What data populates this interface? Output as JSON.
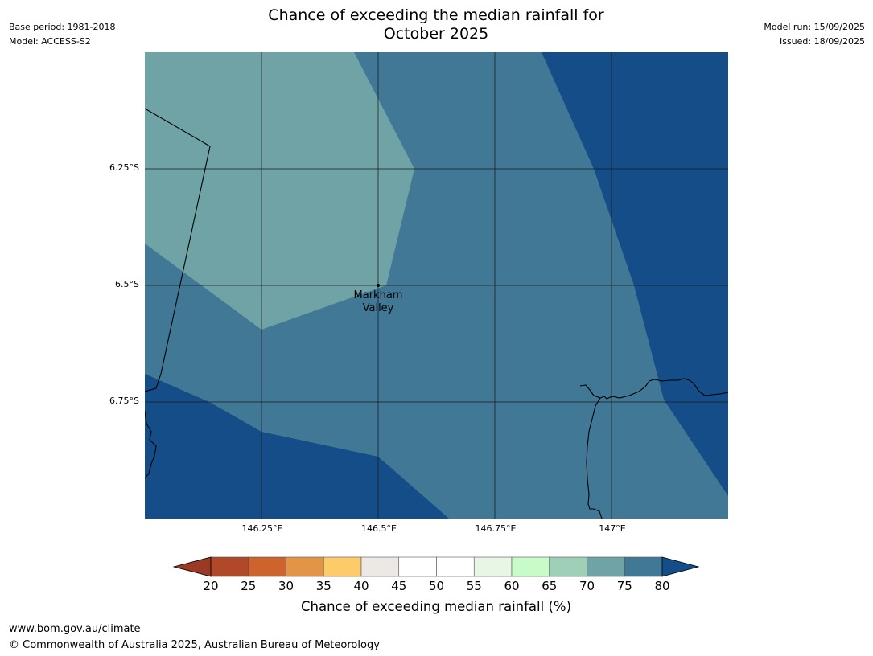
{
  "header": {
    "title_line1": "Chance of exceeding the median rainfall for",
    "title_line2": "October 2025",
    "base_period": "Base period: 1981-2018",
    "model": "Model: ACCESS-S2",
    "model_run": "Model run: 15/09/2025",
    "issued": "Issued: 18/09/2025"
  },
  "map": {
    "place": {
      "name_line1": "Markham",
      "name_line2": "Valley",
      "lon": 146.5,
      "lat": -6.5
    },
    "lat_labels": [
      "6.25°S",
      "6.5°S",
      "6.75°S"
    ],
    "lon_labels": [
      "146.25°E",
      "146.5°E",
      "146.75°E",
      "147°E"
    ],
    "extent": {
      "lon_min": 146.0,
      "lon_max": 147.25,
      "lat_min": -7.0,
      "lat_max": -6.0
    },
    "zones": [
      {
        "category": "80+",
        "color": "#144d87"
      },
      {
        "category": "75-80",
        "color": "#417896"
      },
      {
        "category": "70-75",
        "color": "#6fa3a6"
      }
    ],
    "colors": {
      "gridline": "#1a1a1a",
      "coastline": "#000000"
    }
  },
  "colorbar": {
    "label": "Chance of exceeding median rainfall (%)",
    "ticks": [
      "20",
      "25",
      "30",
      "35",
      "40",
      "45",
      "50",
      "55",
      "60",
      "65",
      "70",
      "75",
      "80"
    ],
    "colors": [
      "#b0482a",
      "#cd632d",
      "#e29546",
      "#fdcb6a",
      "#ece8e3",
      "#ffffff",
      "#ffffff",
      "#e8f5e7",
      "#c7fcc9",
      "#9ecfb7",
      "#6fa3a6",
      "#417896"
    ],
    "under_color": "#9a3a26",
    "over_color": "#144d87"
  },
  "footer": {
    "url": "www.bom.gov.au/climate",
    "copyright": "© Commonwealth of Australia 2025, Australian Bureau of Meteorology"
  }
}
